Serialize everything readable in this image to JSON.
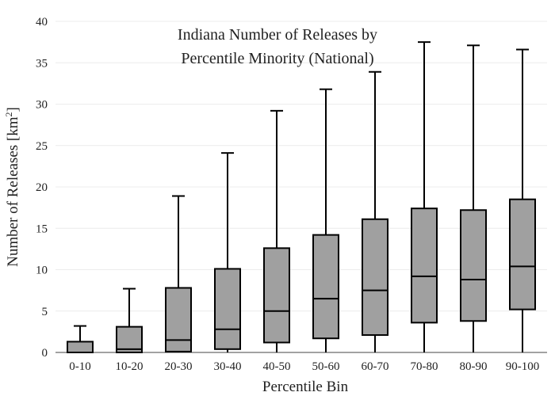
{
  "chart_data": {
    "type": "box",
    "title_lines": [
      "Indiana Number of Releases by",
      "Percentile Minority (National)"
    ],
    "xlabel": "Percentile Bin",
    "ylabel_main": "Number of Releases  [km",
    "ylabel_sup": "2",
    "ylabel_end": "]",
    "ylim": [
      0,
      40
    ],
    "yticks": [
      0,
      5,
      10,
      15,
      20,
      25,
      30,
      35,
      40
    ],
    "grid": true,
    "categories": [
      "0-10",
      "10-20",
      "20-30",
      "30-40",
      "40-50",
      "50-60",
      "60-70",
      "70-80",
      "80-90",
      "90-100"
    ],
    "boxes": [
      {
        "min": 0,
        "q1": 0,
        "median": 0,
        "q3": 1.3,
        "max": 3.2
      },
      {
        "min": 0,
        "q1": 0,
        "median": 0.4,
        "q3": 3.1,
        "max": 7.7
      },
      {
        "min": 0,
        "q1": 0.1,
        "median": 1.5,
        "q3": 7.8,
        "max": 18.9
      },
      {
        "min": 0,
        "q1": 0.4,
        "median": 2.8,
        "q3": 10.1,
        "max": 24.1
      },
      {
        "min": 0,
        "q1": 1.2,
        "median": 5.0,
        "q3": 12.6,
        "max": 29.2
      },
      {
        "min": 0,
        "q1": 1.7,
        "median": 6.5,
        "q3": 14.2,
        "max": 31.8
      },
      {
        "min": 0,
        "q1": 2.1,
        "median": 7.5,
        "q3": 16.1,
        "max": 33.9
      },
      {
        "min": 0,
        "q1": 3.6,
        "median": 9.2,
        "q3": 17.4,
        "max": 37.5
      },
      {
        "min": 0,
        "q1": 3.8,
        "median": 8.8,
        "q3": 17.2,
        "max": 37.1
      },
      {
        "min": 0,
        "q1": 5.2,
        "median": 10.4,
        "q3": 18.5,
        "max": 36.6
      }
    ],
    "box_fill": "#a0a0a0",
    "line_color": "#000000"
  }
}
